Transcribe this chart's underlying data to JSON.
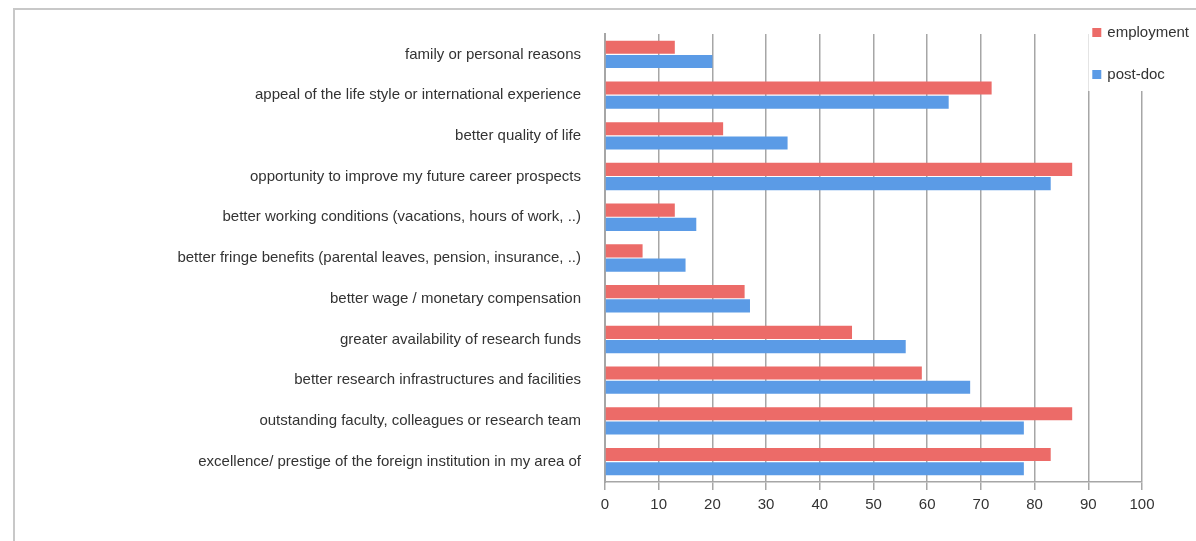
{
  "chart_data": {
    "type": "bar",
    "orientation": "horizontal",
    "categories": [
      "family or personal reasons",
      "appeal of the life style or international experience",
      "better quality of life",
      "opportunity to improve my future career prospects",
      "better working conditions (vacations, hours of work, ..)",
      "better fringe benefits (parental leaves, pension, insurance, ..)",
      "better wage / monetary compensation",
      "greater availability of research funds",
      "better research infrastructures and facilities",
      "outstanding faculty, colleagues or research team",
      "excellence/ prestige of the foreign institution in my area of"
    ],
    "series": [
      {
        "name": "employment",
        "color": "#ec6b68",
        "values": [
          13,
          72,
          22,
          87,
          13,
          7,
          26,
          46,
          59,
          87,
          83
        ]
      },
      {
        "name": "post-doc",
        "color": "#5b9be6",
        "values": [
          20,
          64,
          34,
          83,
          17,
          15,
          27,
          56,
          68,
          78,
          78
        ]
      }
    ],
    "xlim": [
      0,
      100
    ],
    "xticks": [
      0,
      10,
      20,
      30,
      40,
      50,
      60,
      70,
      80,
      90,
      100
    ],
    "grid": "x",
    "legend": "top right"
  }
}
